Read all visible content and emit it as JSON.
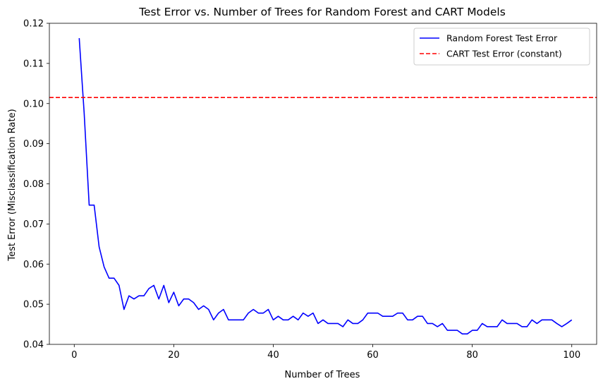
{
  "chart_data": {
    "type": "line",
    "title": "Test Error vs. Number of Trees for Random Forest and CART Models",
    "xlabel": "Number of Trees",
    "ylabel": "Test Error (Misclassification Rate)",
    "xlim": [
      -5,
      105
    ],
    "ylim": [
      0.04,
      0.12
    ],
    "x_ticks": [
      0,
      20,
      40,
      60,
      80,
      100
    ],
    "x_tick_labels": [
      "0",
      "20",
      "40",
      "60",
      "80",
      "100"
    ],
    "y_ticks": [
      0.04,
      0.05,
      0.06,
      0.07,
      0.08,
      0.09,
      0.1,
      0.11,
      0.12
    ],
    "y_tick_labels": [
      "0.04",
      "0.05",
      "0.06",
      "0.07",
      "0.08",
      "0.09",
      "0.10",
      "0.11",
      "0.12"
    ],
    "grid": false,
    "legend_position": "upper right",
    "series": [
      {
        "name": "Random Forest Test Error",
        "color": "#0000ff",
        "style": "solid",
        "x": [
          1,
          2,
          3,
          4,
          5,
          6,
          7,
          8,
          9,
          10,
          11,
          12,
          13,
          14,
          15,
          16,
          17,
          18,
          19,
          20,
          21,
          22,
          23,
          24,
          25,
          26,
          27,
          28,
          29,
          30,
          31,
          32,
          33,
          34,
          35,
          36,
          37,
          38,
          39,
          40,
          41,
          42,
          43,
          44,
          45,
          46,
          47,
          48,
          49,
          50,
          51,
          52,
          53,
          54,
          55,
          56,
          57,
          58,
          59,
          60,
          61,
          62,
          63,
          64,
          65,
          66,
          67,
          68,
          69,
          70,
          71,
          72,
          73,
          74,
          75,
          76,
          77,
          78,
          79,
          80,
          81,
          82,
          83,
          84,
          85,
          86,
          87,
          88,
          89,
          90,
          91,
          92,
          93,
          94,
          95,
          96,
          97,
          98,
          99,
          100
        ],
        "y": [
          0.1163,
          0.0975,
          0.0747,
          0.0747,
          0.0643,
          0.0593,
          0.0565,
          0.0565,
          0.0547,
          0.0487,
          0.0521,
          0.0513,
          0.0521,
          0.0521,
          0.0539,
          0.0547,
          0.0513,
          0.0547,
          0.0504,
          0.053,
          0.0496,
          0.0513,
          0.0513,
          0.0504,
          0.0487,
          0.0496,
          0.0487,
          0.0461,
          0.0478,
          0.0487,
          0.0461,
          0.0461,
          0.0461,
          0.0461,
          0.0478,
          0.0487,
          0.0478,
          0.0478,
          0.0487,
          0.0461,
          0.047,
          0.0461,
          0.0461,
          0.047,
          0.0461,
          0.0478,
          0.047,
          0.0478,
          0.0452,
          0.0461,
          0.0452,
          0.0452,
          0.0452,
          0.0444,
          0.0461,
          0.0452,
          0.0452,
          0.0461,
          0.0478,
          0.0478,
          0.0478,
          0.047,
          0.047,
          0.047,
          0.0478,
          0.0478,
          0.0461,
          0.0461,
          0.047,
          0.047,
          0.0452,
          0.0452,
          0.0444,
          0.0452,
          0.0435,
          0.0435,
          0.0435,
          0.0426,
          0.0426,
          0.0435,
          0.0435,
          0.0452,
          0.0444,
          0.0444,
          0.0444,
          0.0461,
          0.0452,
          0.0452,
          0.0452,
          0.0444,
          0.0444,
          0.0461,
          0.0452,
          0.0461,
          0.0461,
          0.0461,
          0.0452,
          0.0444,
          0.0452,
          0.0461
        ]
      },
      {
        "name": "CART Test Error (constant)",
        "color": "#ff0000",
        "style": "dashed",
        "constant_y": 0.1015
      }
    ]
  }
}
